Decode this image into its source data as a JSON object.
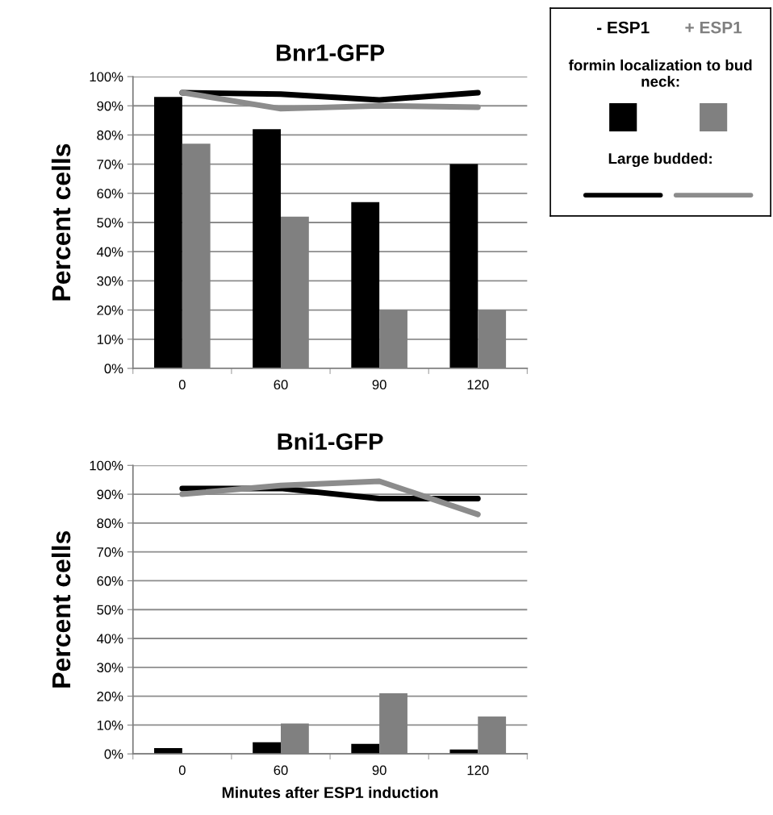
{
  "chart_data": [
    {
      "type": "bar",
      "title": "Bnr1-GFP",
      "ylabel": "Percent cells",
      "categories": [
        "0",
        "60",
        "90",
        "120"
      ],
      "series": [
        {
          "name": "- ESP1",
          "color": "#000000",
          "values": [
            93,
            82,
            57,
            70
          ]
        },
        {
          "name": "+ ESP1",
          "color": "#808080",
          "values": [
            77,
            52,
            20,
            20
          ]
        },
        {
          "type": "line",
          "color": "#000000",
          "values": [
            94.5,
            94,
            92,
            94.5
          ]
        },
        {
          "type": "line",
          "color": "#8c8c8c",
          "values": [
            94.5,
            89,
            90,
            89.5
          ]
        }
      ],
      "ylim": [
        0,
        100
      ],
      "yticks": [
        {
          "value": 0,
          "label": "0%"
        },
        {
          "value": 10,
          "label": "10%"
        },
        {
          "value": 20,
          "label": "20%"
        },
        {
          "value": 30,
          "label": "30%"
        },
        {
          "value": 40,
          "label": "40%"
        },
        {
          "value": 50,
          "label": "50%"
        },
        {
          "value": 60,
          "label": "60%"
        },
        {
          "value": 70,
          "label": "70%"
        },
        {
          "value": 80,
          "label": "80%"
        },
        {
          "value": 90,
          "label": "90%"
        },
        {
          "value": 100,
          "label": "100%"
        }
      ],
      "grid": "y",
      "legend": "right",
      "annotations": [
        "formin localization to bud neck:",
        "Large budded:"
      ]
    },
    {
      "type": "bar",
      "title": "Bni1-GFP",
      "ylabel": "Percent cells",
      "xlabel": "Minutes after ESP1 induction",
      "categories": [
        "0",
        "60",
        "90",
        "120"
      ],
      "series": [
        {
          "color": "#000000",
          "values": [
            2,
            4,
            3.5,
            1.5
          ]
        },
        {
          "color": "#808080",
          "values": [
            0,
            10.5,
            21,
            13
          ]
        },
        {
          "type": "line",
          "color": "#000000",
          "values": [
            92,
            92,
            88.5,
            88.5
          ]
        },
        {
          "type": "line",
          "color": "#8c8c8c",
          "values": [
            90,
            93,
            94.5,
            83
          ]
        }
      ],
      "ylim": [
        0,
        100
      ],
      "yticks": [
        {
          "value": 0,
          "label": "0%"
        },
        {
          "value": 10,
          "label": "10%"
        },
        {
          "value": 20,
          "label": "20%"
        },
        {
          "value": 30,
          "label": "30%"
        },
        {
          "value": 40,
          "label": "40%"
        },
        {
          "value": 50,
          "label": "50%"
        },
        {
          "value": 60,
          "label": "60%"
        },
        {
          "value": 70,
          "label": "70%"
        },
        {
          "value": 80,
          "label": "80%"
        },
        {
          "value": 90,
          "label": "90%"
        },
        {
          "value": 100,
          "label": "100%"
        }
      ],
      "grid": "y"
    }
  ]
}
